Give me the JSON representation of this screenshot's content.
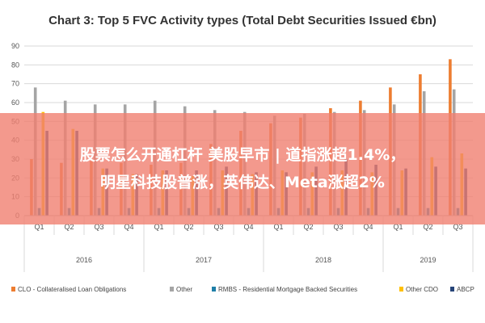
{
  "chart_data": {
    "type": "bar",
    "title": "Chart 3: Top 5 FVC Activity types (Total Debt Securities Issued €bn)",
    "categories": [
      "Q1",
      "Q2",
      "Q3",
      "Q4",
      "Q1",
      "Q2",
      "Q3",
      "Q4",
      "Q1",
      "Q2",
      "Q3",
      "Q4",
      "Q1",
      "Q2",
      "Q3"
    ],
    "groups": [
      {
        "label": "2016",
        "count": 4
      },
      {
        "label": "2017",
        "count": 4
      },
      {
        "label": "2018",
        "count": 4
      },
      {
        "label": "2019",
        "count": 3
      }
    ],
    "ylim": [
      0,
      90
    ],
    "yticks": [
      "0",
      "10",
      "20",
      "30",
      "40",
      "50",
      "60",
      "70",
      "80",
      "90"
    ],
    "grid": true,
    "legend_position": "bottom",
    "series": [
      {
        "name": "CLO - Collateralised Loan Obligations",
        "color": "#ed7d31",
        "values": [
          30,
          28,
          29,
          28,
          27,
          28,
          38,
          45,
          49,
          52,
          57,
          61,
          68,
          75,
          83
        ]
      },
      {
        "name": "Other",
        "color": "#a5a5a5",
        "values": [
          68,
          61,
          59,
          59,
          61,
          58,
          56,
          55,
          53,
          54,
          55,
          56,
          59,
          66,
          67
        ]
      },
      {
        "name": "RMBS - Residential Mortgage Backed Securities",
        "color": "#1f7fa8",
        "values": [
          4,
          4,
          4,
          4,
          4,
          4,
          4,
          4,
          4,
          4,
          4,
          4,
          4,
          4,
          4
        ]
      },
      {
        "name": "Other CDO",
        "color": "#ffc000",
        "values": [
          55,
          46,
          25,
          22,
          24,
          21,
          24,
          22,
          24,
          23,
          24,
          23,
          24,
          31,
          33
        ]
      },
      {
        "name": "ABCP",
        "color": "#264478",
        "values": [
          45,
          45,
          25,
          22,
          24,
          24,
          26,
          23,
          23,
          26,
          30,
          27,
          25,
          26,
          25
        ]
      }
    ]
  },
  "banner": {
    "line1": "股票怎么开通杠杆 美股早市 | 道指涨超1.4%，",
    "line2": "明星科技股普涨，英伟达、Meta涨超2%"
  }
}
